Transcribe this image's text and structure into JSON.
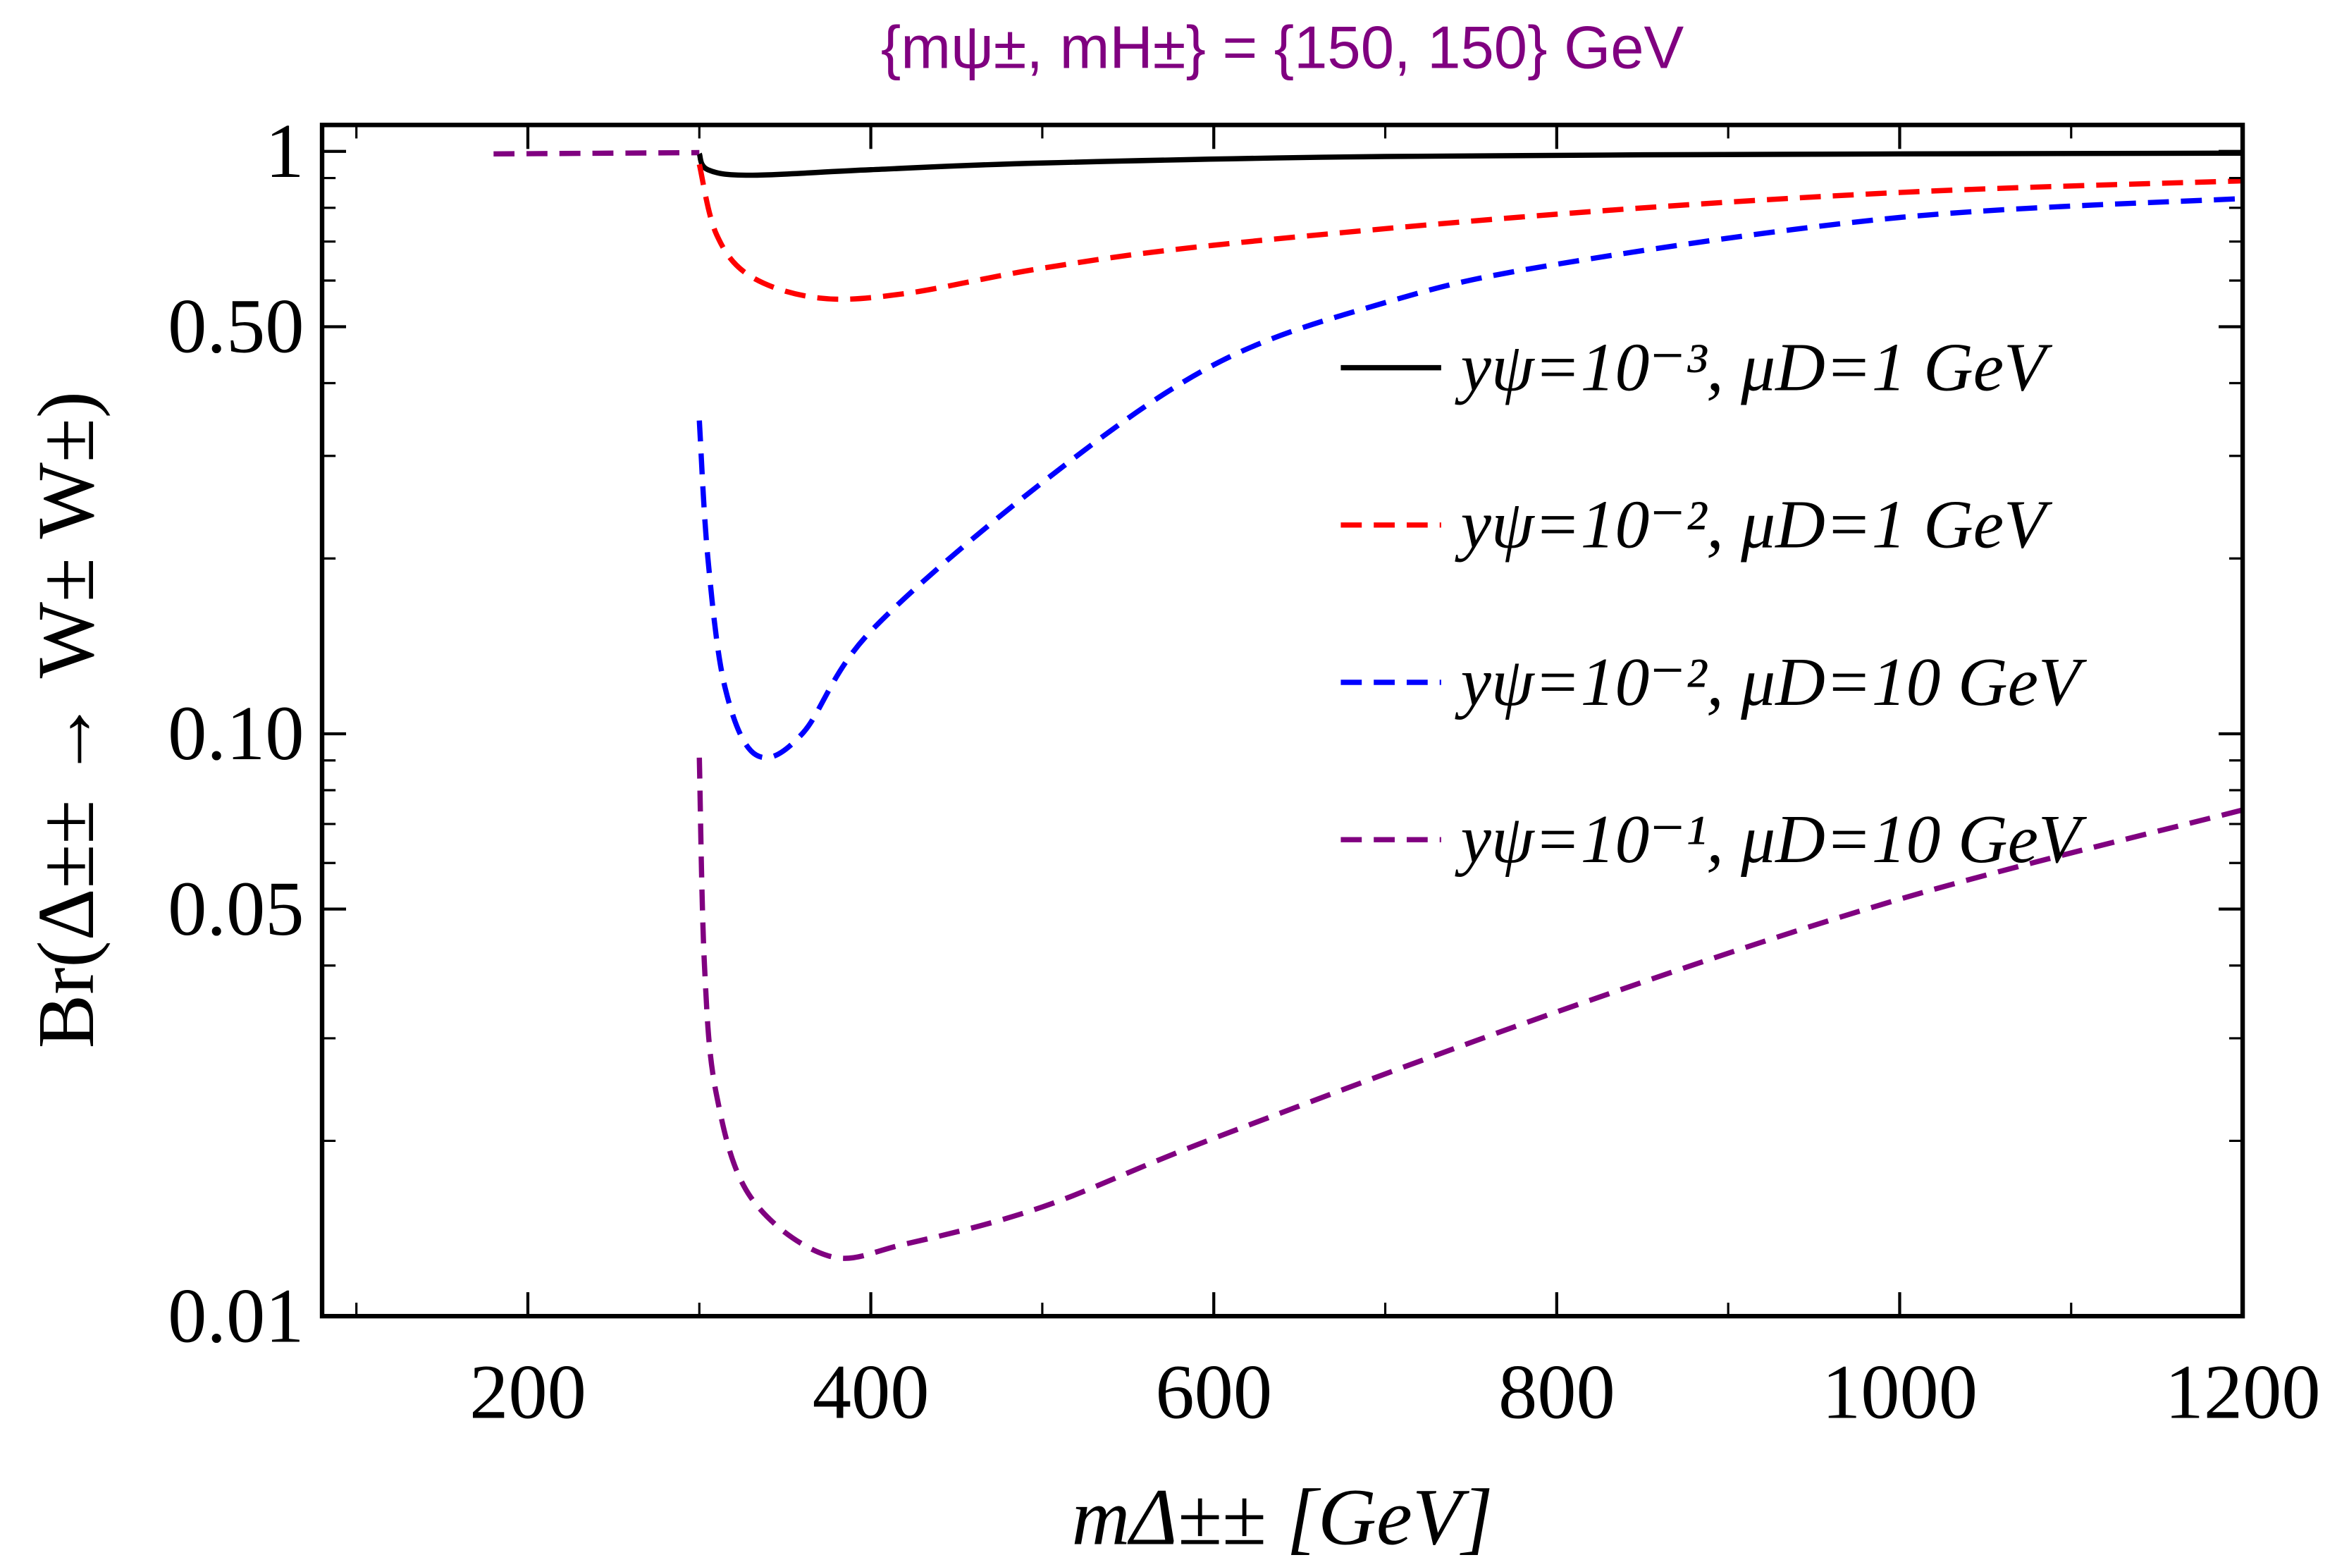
{
  "chart_data": {
    "type": "line",
    "title": "{mψ±, mH±} = {150, 150} GeV",
    "xlabel": "mΔ±± [GeV]",
    "ylabel": "Br(Δ±± → W± W±)",
    "xlim": [
      80,
      1200
    ],
    "ylim": [
      0.01,
      1.11
    ],
    "yscale": "log",
    "xticks": [
      "200",
      "400",
      "600",
      "800",
      "1000",
      "1200"
    ],
    "xtick_values": [
      200,
      400,
      600,
      800,
      1000,
      1200
    ],
    "yticks": [
      "0.01",
      "0.05",
      "0.10",
      "0.50",
      "1"
    ],
    "ytick_values": [
      0.01,
      0.05,
      0.1,
      0.5,
      1
    ],
    "grid": false,
    "legend_placement": "center-right",
    "series": [
      {
        "name": "yψ=10⁻³, μD=1 GeV",
        "color": "#000000",
        "dashed": false,
        "points": [
          [
            300,
            0.99
          ],
          [
            305,
            0.93
          ],
          [
            330,
            0.91
          ],
          [
            400,
            0.93
          ],
          [
            500,
            0.955
          ],
          [
            700,
            0.98
          ],
          [
            1000,
            0.99
          ],
          [
            1200,
            0.993
          ]
        ]
      },
      {
        "name": "yψ=10⁻², μD=1 GeV",
        "color": "#ff0000",
        "dashed": true,
        "points": [
          [
            300,
            0.95
          ],
          [
            310,
            0.72
          ],
          [
            330,
            0.61
          ],
          [
            370,
            0.56
          ],
          [
            420,
            0.57
          ],
          [
            500,
            0.63
          ],
          [
            600,
            0.69
          ],
          [
            800,
            0.78
          ],
          [
            1000,
            0.85
          ],
          [
            1200,
            0.89
          ]
        ]
      },
      {
        "name": "yψ=10⁻², μD=10 GeV",
        "color": "#0000ff",
        "dashed": true,
        "points": [
          [
            300,
            0.345
          ],
          [
            305,
            0.2
          ],
          [
            315,
            0.12
          ],
          [
            333,
            0.092
          ],
          [
            360,
            0.1
          ],
          [
            400,
            0.15
          ],
          [
            500,
            0.27
          ],
          [
            600,
            0.43
          ],
          [
            700,
            0.55
          ],
          [
            800,
            0.64
          ],
          [
            1000,
            0.77
          ],
          [
            1200,
            0.83
          ]
        ]
      },
      {
        "name": "yψ=10⁻¹, μD=10 GeV",
        "color": "#800080",
        "dashed": true,
        "points": [
          [
            300,
            0.091
          ],
          [
            303,
            0.04
          ],
          [
            310,
            0.024
          ],
          [
            330,
            0.016
          ],
          [
            375,
            0.0127
          ],
          [
            420,
            0.0133
          ],
          [
            500,
            0.0154
          ],
          [
            600,
            0.0202
          ],
          [
            800,
            0.0333
          ],
          [
            1000,
            0.052
          ],
          [
            1200,
            0.074
          ]
        ]
      }
    ],
    "common_segment": {
      "color": "#800080",
      "dashed": true,
      "points": [
        [
          180,
          0.99
        ],
        [
          300,
          0.995
        ]
      ]
    }
  }
}
